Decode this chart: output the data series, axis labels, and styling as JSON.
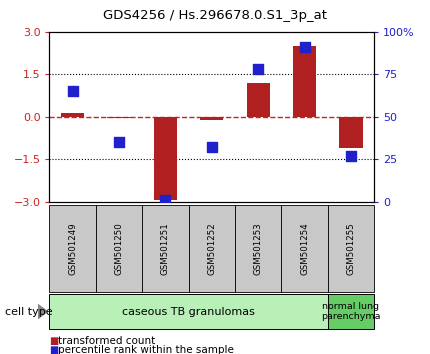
{
  "title": "GDS4256 / Hs.296678.0.S1_3p_at",
  "samples": [
    "GSM501249",
    "GSM501250",
    "GSM501251",
    "GSM501252",
    "GSM501253",
    "GSM501254",
    "GSM501255"
  ],
  "transformed_count": [
    0.12,
    -0.05,
    -2.95,
    -0.12,
    1.2,
    2.5,
    -1.1
  ],
  "percentile_rank": [
    65,
    35,
    1,
    32,
    78,
    91,
    27
  ],
  "ylim_left": [
    -3,
    3
  ],
  "ylim_right": [
    0,
    100
  ],
  "yticks_left": [
    -3,
    -1.5,
    0,
    1.5,
    3
  ],
  "yticks_right": [
    0,
    25,
    50,
    75,
    100
  ],
  "bar_color": "#b02020",
  "dot_color": "#2020cc",
  "hline_color": "#cc2222",
  "bg_plot": "#ffffff",
  "bg_xtick": "#c8c8c8",
  "cell_type_groups": [
    {
      "label": "caseous TB granulomas",
      "span": [
        0,
        5
      ],
      "color": "#b8f0b8"
    },
    {
      "label": "normal lung\nparenchyma",
      "span": [
        6,
        6
      ],
      "color": "#66cc66"
    }
  ],
  "legend_red": "transformed count",
  "legend_blue": "percentile rank within the sample",
  "cell_type_label": "cell type"
}
